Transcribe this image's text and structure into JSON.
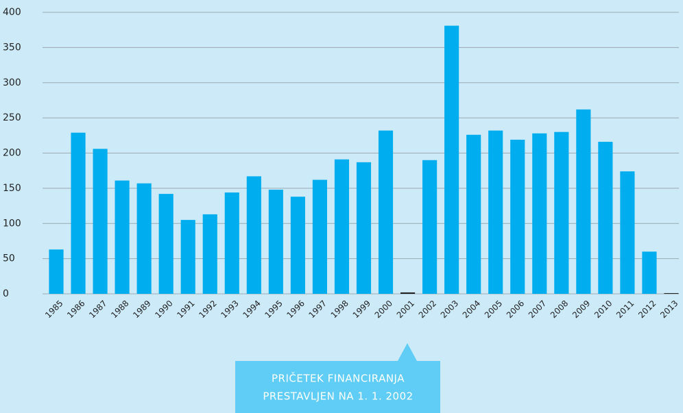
{
  "chart_data": {
    "type": "bar",
    "categories": [
      "1985",
      "1986",
      "1987",
      "1988",
      "1989",
      "1990",
      "1991",
      "1992",
      "1993",
      "1994",
      "1995",
      "1996",
      "1997",
      "1998",
      "1999",
      "2000",
      "2001",
      "2002",
      "2003",
      "2004",
      "2005",
      "2006",
      "2007",
      "2008",
      "2009",
      "2010",
      "2011",
      "2012",
      "2013"
    ],
    "values": [
      63,
      229,
      206,
      161,
      157,
      142,
      105,
      113,
      144,
      167,
      148,
      138,
      162,
      191,
      187,
      232,
      2,
      190,
      381,
      226,
      232,
      219,
      228,
      230,
      262,
      216,
      174,
      60,
      1
    ],
    "colors": [
      "#00aeef",
      "#00aeef",
      "#00aeef",
      "#00aeef",
      "#00aeef",
      "#00aeef",
      "#00aeef",
      "#00aeef",
      "#00aeef",
      "#00aeef",
      "#00aeef",
      "#00aeef",
      "#00aeef",
      "#00aeef",
      "#00aeef",
      "#00aeef",
      "#222222",
      "#00aeef",
      "#00aeef",
      "#00aeef",
      "#00aeef",
      "#00aeef",
      "#00aeef",
      "#00aeef",
      "#00aeef",
      "#00aeef",
      "#00aeef",
      "#00aeef",
      "#222222"
    ],
    "ylim": [
      0,
      400
    ],
    "yticks": [
      0,
      50,
      100,
      150,
      200,
      250,
      300,
      350,
      400
    ],
    "grid": true,
    "annotation": [
      "PRIČETEK FINANCIRANJA",
      "PRESTAVLJEN NA 1. 1. 2002"
    ]
  }
}
